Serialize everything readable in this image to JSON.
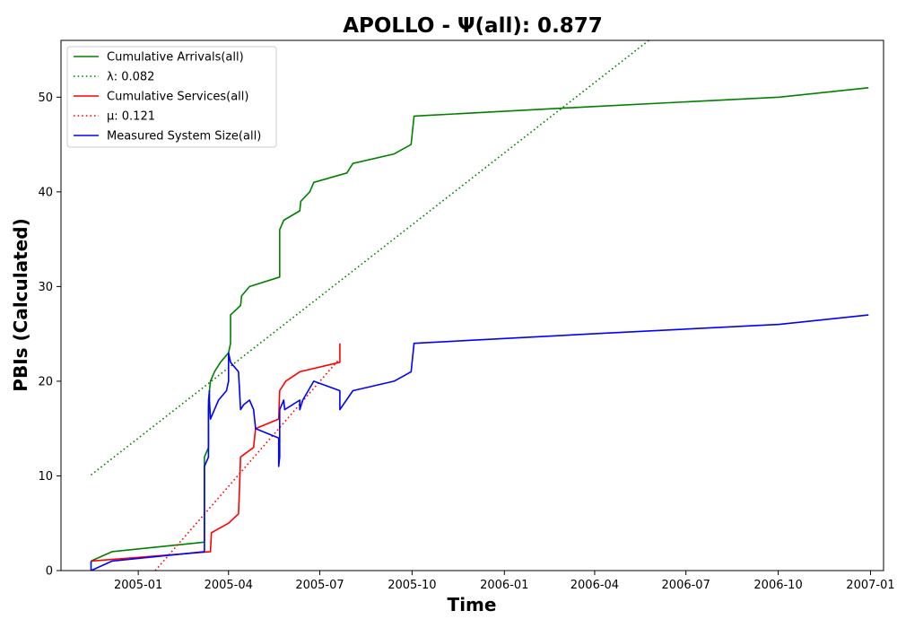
{
  "chart_data": {
    "type": "line",
    "title": "APOLLO -  Ψ(all): 0.877",
    "xlabel": "Time",
    "ylabel": "PBIs (Calculated)",
    "xlim": [
      "2004-10-16",
      "2007-01-14"
    ],
    "ylim": [
      0,
      56
    ],
    "x_ticks": [
      "2005-01",
      "2005-04",
      "2005-07",
      "2005-10",
      "2006-01",
      "2006-04",
      "2006-07",
      "2006-10",
      "2007-01"
    ],
    "y_ticks": [
      0,
      10,
      20,
      30,
      40,
      50
    ],
    "grid": false,
    "legend_position": "top-left",
    "series": [
      {
        "name": "Cumulative Arrivals(all)",
        "color": "#008000",
        "style": "solid",
        "points": [
          [
            "2004-11-15",
            1
          ],
          [
            "2004-12-06",
            2
          ],
          [
            "2005-03-08",
            3
          ],
          [
            "2005-03-08",
            12
          ],
          [
            "2005-03-12",
            13
          ],
          [
            "2005-03-12",
            18
          ],
          [
            "2005-03-14",
            20
          ],
          [
            "2005-03-18",
            21
          ],
          [
            "2005-03-24",
            22
          ],
          [
            "2005-04-01",
            23
          ],
          [
            "2005-04-03",
            24
          ],
          [
            "2005-04-03",
            27
          ],
          [
            "2005-04-13",
            28
          ],
          [
            "2005-04-14",
            29
          ],
          [
            "2005-04-22",
            30
          ],
          [
            "2005-05-22",
            31
          ],
          [
            "2005-05-22",
            36
          ],
          [
            "2005-05-26",
            37
          ],
          [
            "2005-06-11",
            38
          ],
          [
            "2005-06-12",
            39
          ],
          [
            "2005-06-21",
            40
          ],
          [
            "2005-06-25",
            41
          ],
          [
            "2005-07-28",
            42
          ],
          [
            "2005-08-03",
            43
          ],
          [
            "2005-09-13",
            44
          ],
          [
            "2005-09-30",
            45
          ],
          [
            "2005-10-01",
            46
          ],
          [
            "2005-10-02",
            47
          ],
          [
            "2005-10-03",
            48
          ],
          [
            "2006-03-28",
            49
          ],
          [
            "2006-10-02",
            50
          ],
          [
            "2006-12-30",
            51
          ]
        ]
      },
      {
        "name": "λ: 0.082",
        "color": "#008000",
        "style": "dotted",
        "points": [
          [
            "2004-11-15",
            10.1
          ],
          [
            "2006-05-25",
            56
          ]
        ]
      },
      {
        "name": "Cumulative Services(all)",
        "color": "#ff0000",
        "style": "solid",
        "points": [
          [
            "2004-11-15",
            1
          ],
          [
            "2005-03-14",
            2
          ],
          [
            "2005-03-15",
            4
          ],
          [
            "2005-04-01",
            5
          ],
          [
            "2005-04-11",
            6
          ],
          [
            "2005-04-12",
            9
          ],
          [
            "2005-04-13",
            12
          ],
          [
            "2005-04-26",
            13
          ],
          [
            "2005-04-28",
            15
          ],
          [
            "2005-05-21",
            16
          ],
          [
            "2005-05-22",
            19
          ],
          [
            "2005-05-28",
            20
          ],
          [
            "2005-06-11",
            21
          ],
          [
            "2005-07-21",
            22
          ],
          [
            "2005-07-21",
            24
          ]
        ]
      },
      {
        "name": "μ: 0.121",
        "color": "#ff0000",
        "style": "dotted",
        "points": [
          [
            "2005-01-18",
            0
          ],
          [
            "2005-07-20",
            22.3
          ]
        ]
      },
      {
        "name": "Measured System Size(all)",
        "color": "#0000ff",
        "style": "solid",
        "points": [
          [
            "2004-11-15",
            1
          ],
          [
            "2004-11-15",
            0
          ],
          [
            "2004-12-06",
            1
          ],
          [
            "2005-03-08",
            2
          ],
          [
            "2005-03-08",
            11
          ],
          [
            "2005-03-12",
            12
          ],
          [
            "2005-03-12",
            17
          ],
          [
            "2005-03-13",
            19
          ],
          [
            "2005-03-13",
            18
          ],
          [
            "2005-03-14",
            16
          ],
          [
            "2005-03-18",
            17
          ],
          [
            "2005-03-22",
            18
          ],
          [
            "2005-03-30",
            19
          ],
          [
            "2005-04-01",
            20
          ],
          [
            "2005-04-01",
            23
          ],
          [
            "2005-04-03",
            22
          ],
          [
            "2005-04-11",
            21
          ],
          [
            "2005-04-13",
            17
          ],
          [
            "2005-04-16",
            17.5
          ],
          [
            "2005-04-22",
            18
          ],
          [
            "2005-04-26",
            17
          ],
          [
            "2005-04-27",
            16
          ],
          [
            "2005-04-28",
            15
          ],
          [
            "2005-05-21",
            14
          ],
          [
            "2005-05-21",
            11
          ],
          [
            "2005-05-22",
            12
          ],
          [
            "2005-05-22",
            17
          ],
          [
            "2005-05-26",
            18
          ],
          [
            "2005-05-27",
            17
          ],
          [
            "2005-06-11",
            18
          ],
          [
            "2005-06-11",
            17
          ],
          [
            "2005-06-14",
            18
          ],
          [
            "2005-06-25",
            20
          ],
          [
            "2005-07-21",
            19
          ],
          [
            "2005-07-21",
            17
          ],
          [
            "2005-08-03",
            19
          ],
          [
            "2005-09-13",
            20
          ],
          [
            "2005-09-30",
            21
          ],
          [
            "2005-10-01",
            22
          ],
          [
            "2005-10-02",
            23
          ],
          [
            "2005-10-03",
            24
          ],
          [
            "2006-03-28",
            25
          ],
          [
            "2006-10-02",
            26
          ],
          [
            "2006-12-30",
            27
          ]
        ]
      }
    ]
  }
}
